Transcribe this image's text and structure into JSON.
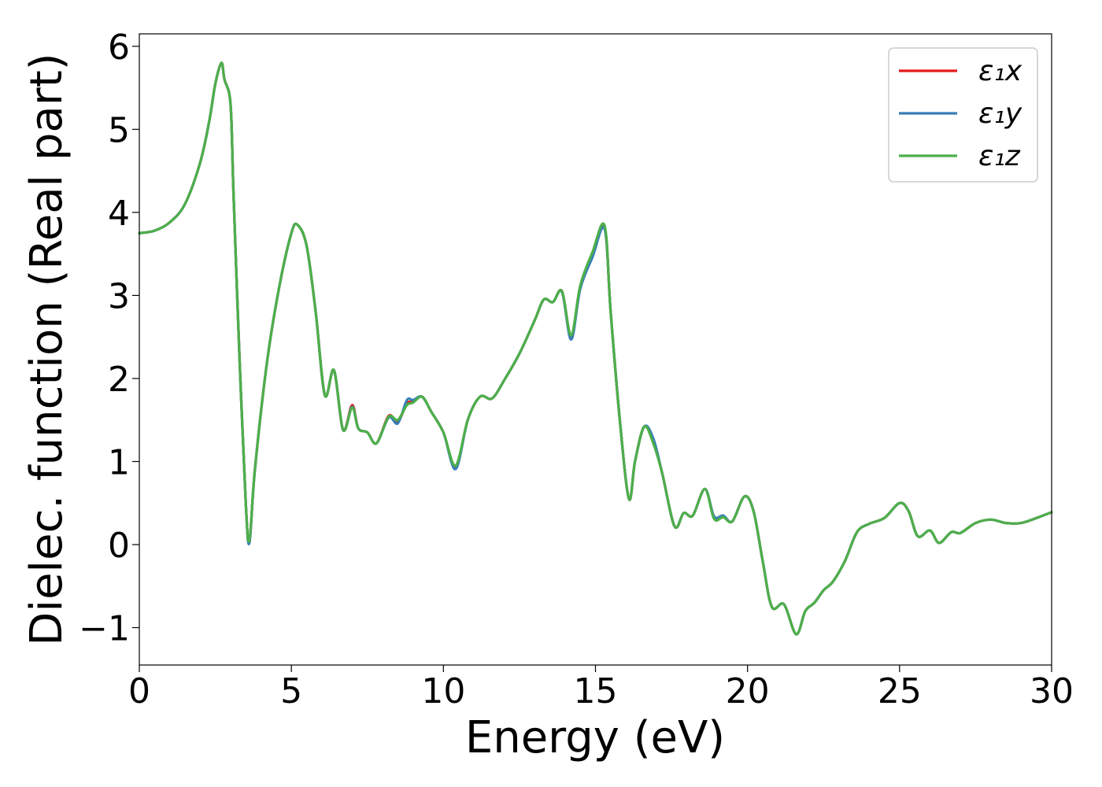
{
  "chart_data": {
    "type": "line",
    "xlabel": "Energy (eV)",
    "ylabel": "Dielec. function (Real part)",
    "xlim": [
      0,
      30
    ],
    "ylim": [
      -1.45,
      6.15
    ],
    "xticks": [
      0,
      5,
      10,
      15,
      20,
      25,
      30
    ],
    "xtick_labels": [
      "0",
      "5",
      "10",
      "15",
      "20",
      "25",
      "30"
    ],
    "yticks": [
      -1,
      0,
      1,
      2,
      3,
      4,
      5,
      6
    ],
    "ytick_labels": [
      "−1",
      "0",
      "1",
      "2",
      "3",
      "4",
      "5",
      "6"
    ],
    "grid": false,
    "legend_position": "top-right",
    "x": [
      0,
      0.5,
      1.0,
      1.5,
      2.0,
      2.3,
      2.5,
      2.7,
      2.8,
      3.0,
      3.1,
      3.3,
      3.5,
      3.62,
      3.8,
      4.2,
      4.6,
      5.0,
      5.2,
      5.5,
      5.8,
      6.1,
      6.4,
      6.7,
      7.0,
      7.2,
      7.5,
      7.8,
      8.2,
      8.5,
      8.8,
      9.0,
      9.3,
      9.6,
      10.0,
      10.4,
      10.8,
      11.2,
      11.6,
      12.0,
      12.5,
      13.0,
      13.3,
      13.6,
      13.9,
      14.2,
      14.5,
      14.9,
      15.3,
      15.5,
      15.8,
      16.1,
      16.3,
      16.6,
      16.9,
      17.2,
      17.6,
      17.9,
      18.2,
      18.6,
      18.9,
      19.2,
      19.5,
      19.9,
      20.2,
      20.5,
      20.8,
      21.2,
      21.6,
      21.9,
      22.2,
      22.5,
      22.8,
      23.2,
      23.6,
      24.0,
      24.5,
      25.0,
      25.3,
      25.6,
      26.0,
      26.3,
      26.7,
      27.0,
      27.5,
      28.0,
      28.5,
      29.0,
      29.5,
      30.0
    ],
    "series": [
      {
        "name": "ε₁x",
        "color": "#e41a1c",
        "values": [
          3.75,
          3.78,
          3.88,
          4.1,
          4.6,
          5.1,
          5.55,
          5.8,
          5.6,
          5.3,
          4.2,
          2.2,
          0.5,
          0.03,
          0.9,
          2.2,
          3.1,
          3.75,
          3.85,
          3.6,
          2.8,
          1.8,
          2.1,
          1.38,
          1.68,
          1.4,
          1.35,
          1.22,
          1.55,
          1.48,
          1.7,
          1.72,
          1.78,
          1.6,
          1.35,
          0.93,
          1.5,
          1.78,
          1.76,
          1.98,
          2.3,
          2.7,
          2.95,
          2.92,
          3.05,
          2.5,
          3.1,
          3.5,
          3.82,
          2.8,
          1.5,
          0.55,
          1.0,
          1.42,
          1.25,
          0.85,
          0.22,
          0.38,
          0.35,
          0.67,
          0.32,
          0.34,
          0.28,
          0.58,
          0.4,
          -0.2,
          -0.75,
          -0.72,
          -1.08,
          -0.8,
          -0.7,
          -0.55,
          -0.45,
          -0.2,
          0.15,
          0.25,
          0.32,
          0.5,
          0.4,
          0.1,
          0.17,
          0.02,
          0.15,
          0.14,
          0.26,
          0.3,
          0.26,
          0.26,
          0.32,
          0.39
        ]
      },
      {
        "name": "ε₁y",
        "color": "#377eb8",
        "values": [
          3.75,
          3.78,
          3.88,
          4.1,
          4.6,
          5.1,
          5.55,
          5.8,
          5.6,
          5.3,
          4.2,
          2.2,
          0.5,
          0.02,
          0.9,
          2.2,
          3.1,
          3.75,
          3.85,
          3.6,
          2.8,
          1.8,
          2.1,
          1.38,
          1.66,
          1.4,
          1.35,
          1.22,
          1.53,
          1.46,
          1.74,
          1.74,
          1.78,
          1.6,
          1.35,
          0.91,
          1.5,
          1.78,
          1.76,
          1.98,
          2.3,
          2.7,
          2.95,
          2.92,
          3.04,
          2.47,
          3.08,
          3.46,
          3.8,
          2.8,
          1.5,
          0.55,
          1.0,
          1.42,
          1.28,
          0.85,
          0.22,
          0.38,
          0.35,
          0.67,
          0.34,
          0.35,
          0.28,
          0.58,
          0.4,
          -0.2,
          -0.75,
          -0.72,
          -1.08,
          -0.8,
          -0.7,
          -0.55,
          -0.45,
          -0.2,
          0.15,
          0.25,
          0.32,
          0.5,
          0.4,
          0.1,
          0.17,
          0.02,
          0.15,
          0.14,
          0.26,
          0.3,
          0.26,
          0.26,
          0.32,
          0.39
        ]
      },
      {
        "name": "ε₁z",
        "color": "#4daf4a",
        "values": [
          3.75,
          3.78,
          3.88,
          4.1,
          4.6,
          5.1,
          5.55,
          5.8,
          5.6,
          5.3,
          4.2,
          2.2,
          0.5,
          0.05,
          0.9,
          2.2,
          3.1,
          3.75,
          3.85,
          3.6,
          2.8,
          1.8,
          2.1,
          1.38,
          1.65,
          1.4,
          1.35,
          1.22,
          1.54,
          1.5,
          1.68,
          1.71,
          1.78,
          1.6,
          1.35,
          0.95,
          1.5,
          1.78,
          1.76,
          1.98,
          2.3,
          2.7,
          2.95,
          2.92,
          3.05,
          2.52,
          3.12,
          3.52,
          3.84,
          2.8,
          1.5,
          0.55,
          1.0,
          1.42,
          1.22,
          0.85,
          0.22,
          0.38,
          0.35,
          0.67,
          0.31,
          0.33,
          0.28,
          0.58,
          0.4,
          -0.2,
          -0.75,
          -0.72,
          -1.08,
          -0.8,
          -0.7,
          -0.55,
          -0.45,
          -0.2,
          0.15,
          0.25,
          0.32,
          0.5,
          0.4,
          0.1,
          0.17,
          0.02,
          0.15,
          0.14,
          0.26,
          0.3,
          0.26,
          0.26,
          0.32,
          0.39
        ]
      }
    ]
  }
}
